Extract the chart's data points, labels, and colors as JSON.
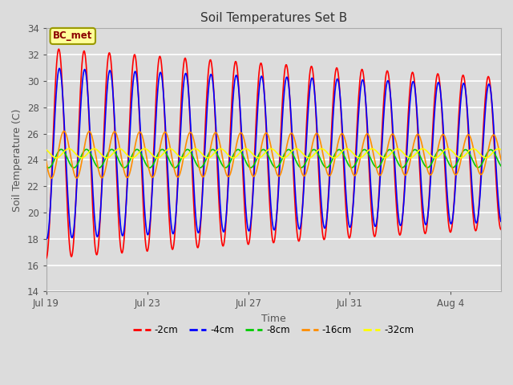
{
  "title": "Soil Temperatures Set B",
  "xlabel": "Time",
  "ylabel": "Soil Temperature (C)",
  "ylim": [
    14,
    34
  ],
  "yticks": [
    14,
    16,
    18,
    20,
    22,
    24,
    26,
    28,
    30,
    32,
    34
  ],
  "annotation_text": "BC_met",
  "annotation_box_color": "#FFFF99",
  "annotation_border_color": "#999900",
  "fig_bg_color": "#DCDCDC",
  "plot_bg_color": "#DCDCDC",
  "series": [
    {
      "label": "-2cm",
      "color": "#FF0000",
      "amplitude": 8.0,
      "phase": 0.0,
      "mean": 24.5,
      "phase_shift_per_day": 0.0,
      "amp_decay": 0.018
    },
    {
      "label": "-4cm",
      "color": "#0000FF",
      "amplitude": 6.5,
      "phase": 0.15,
      "mean": 24.5,
      "phase_shift_per_day": 0.0,
      "amp_decay": 0.012
    },
    {
      "label": "-8cm",
      "color": "#00CC00",
      "amplitude": 0.7,
      "phase": 0.6,
      "mean": 24.1,
      "phase_shift_per_day": 0.0,
      "amp_decay": 0.002
    },
    {
      "label": "-16cm",
      "color": "#FF8C00",
      "amplitude": 1.8,
      "phase": 1.3,
      "mean": 24.4,
      "phase_shift_per_day": 0.0,
      "amp_decay": 0.01
    },
    {
      "label": "-32cm",
      "color": "#FFFF00",
      "amplitude": 0.35,
      "phase": 2.5,
      "mean": 24.5,
      "phase_shift_per_day": 0.0,
      "amp_decay": 0.001
    }
  ],
  "num_days": 18,
  "samples_per_day": 48,
  "xtick_positions": [
    0,
    4,
    8,
    12,
    16
  ],
  "xtick_labels": [
    "Jul 19",
    "Jul 23",
    "Jul 27",
    "Jul 31",
    "Aug 4"
  ],
  "line_width": 1.2,
  "figsize": [
    6.4,
    4.8
  ],
  "dpi": 100
}
